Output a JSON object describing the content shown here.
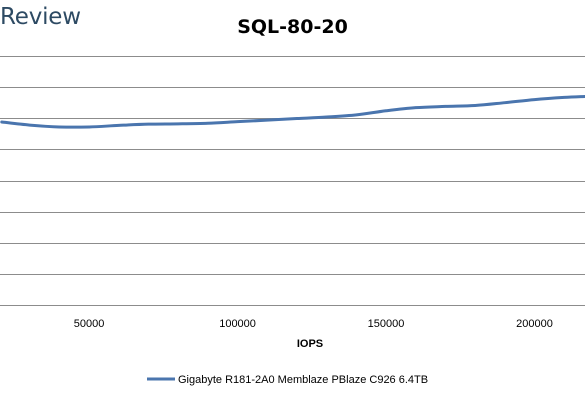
{
  "brand": {
    "text": "Review"
  },
  "chart_data": {
    "type": "line",
    "title": "SQL-80-20",
    "xlabel": "IOPS",
    "ylabel": "",
    "xlim": [
      20000,
      217000
    ],
    "ylim": [
      0,
      8
    ],
    "x_ticks": [
      50000,
      100000,
      150000,
      200000
    ],
    "y_gridlines": 8,
    "grid": true,
    "legend_position": "bottom",
    "series": [
      {
        "name": "Gigabyte R181-2A0 Memblaze PBlaze C926 6.4TB",
        "color": "#4a75ae",
        "x": [
          20600,
          30000,
          40000,
          50000,
          60000,
          70000,
          80000,
          90000,
          100000,
          110000,
          120000,
          130000,
          140000,
          150000,
          160000,
          170000,
          180000,
          190000,
          200000,
          210000,
          217000
        ],
        "y": [
          5.88,
          5.78,
          5.72,
          5.72,
          5.77,
          5.81,
          5.82,
          5.84,
          5.89,
          5.94,
          5.99,
          6.04,
          6.11,
          6.24,
          6.34,
          6.38,
          6.41,
          6.5,
          6.6,
          6.67,
          6.7
        ]
      }
    ]
  }
}
